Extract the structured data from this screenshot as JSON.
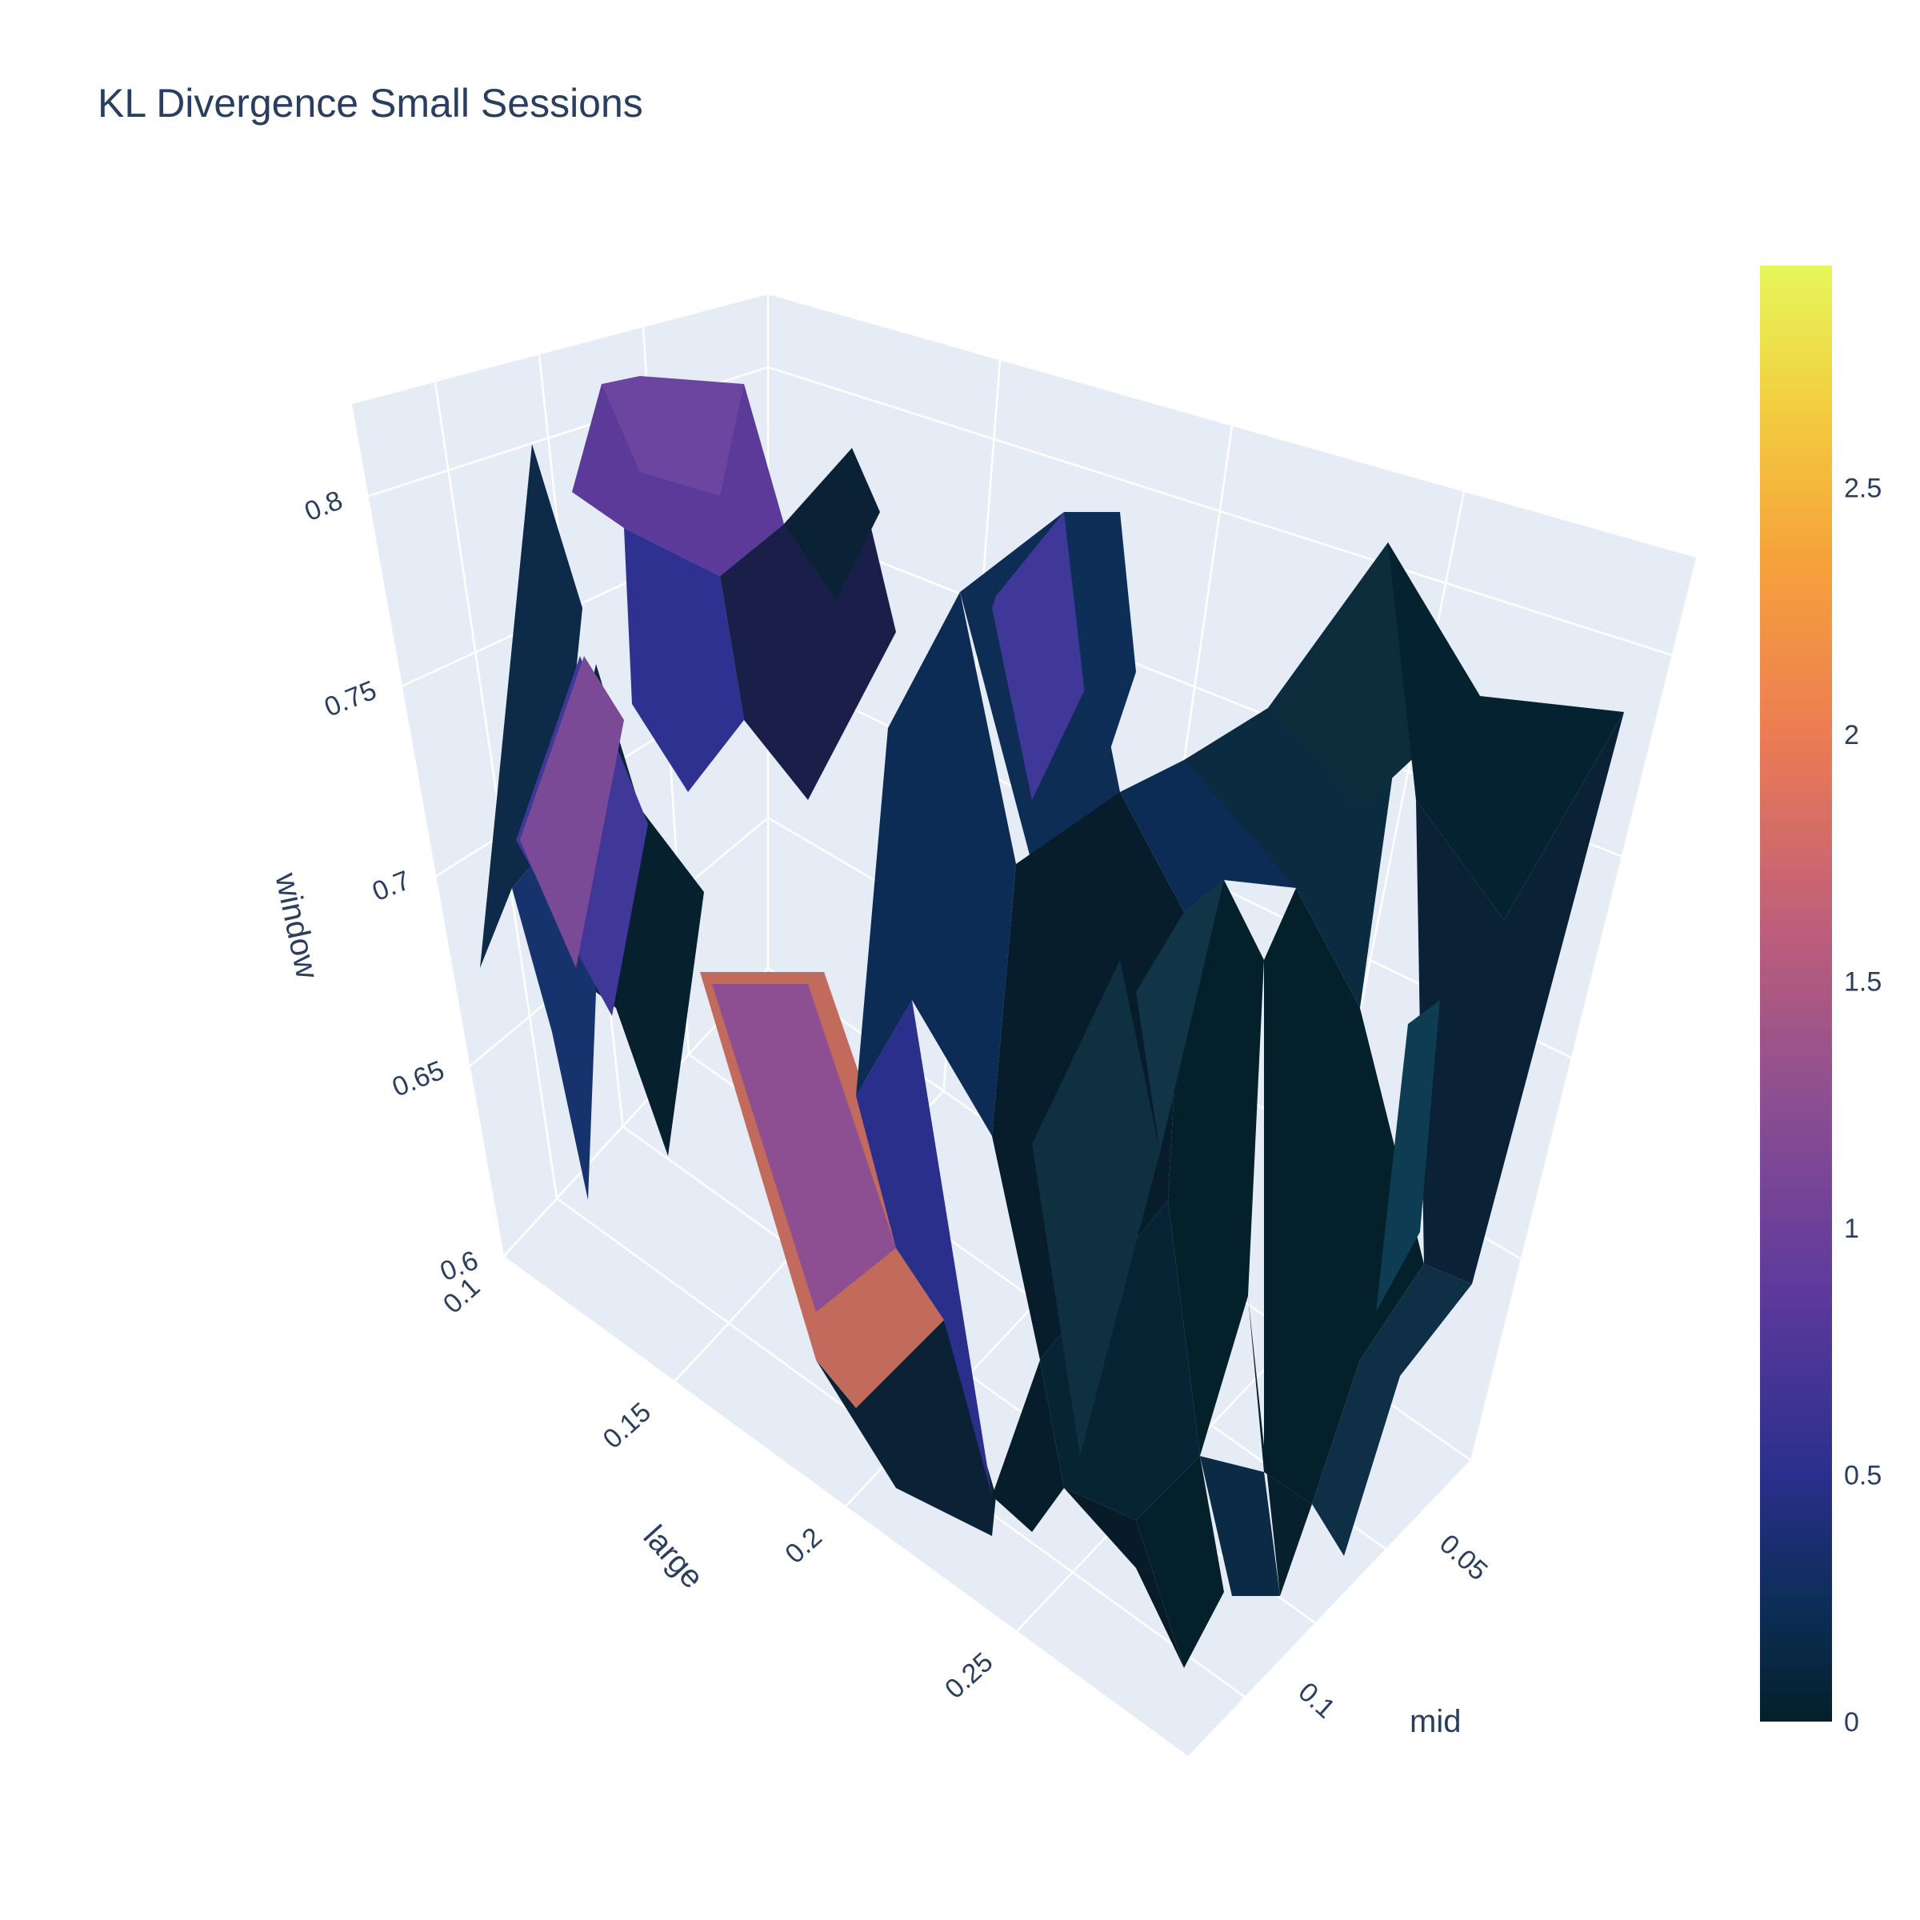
{
  "chart_data": {
    "type": "surface3d",
    "title": "KL Divergence Small Sessions",
    "axes": {
      "x": {
        "label": "large",
        "ticks": [
          "0.1",
          "0.15",
          "0.2",
          "0.25"
        ],
        "range": [
          0.1,
          0.3
        ]
      },
      "y": {
        "label": "mid",
        "ticks": [
          "0.05",
          "0.1"
        ],
        "range": [
          0.03,
          0.13
        ]
      },
      "z": {
        "label": "window",
        "ticks": [
          "0.6",
          "0.65",
          "0.7",
          "0.75",
          "0.8"
        ],
        "range": [
          0.6,
          0.82
        ]
      }
    },
    "colorbar": {
      "colorscale": "thermal",
      "range": [
        0,
        2.95
      ],
      "ticks": [
        "0",
        "0.5",
        "1",
        "1.5",
        "2",
        "2.5"
      ]
    },
    "grid": true,
    "colors": {
      "background": "#e5ecf6",
      "grid": "#ffffff",
      "text": "#2a3f5f"
    }
  }
}
